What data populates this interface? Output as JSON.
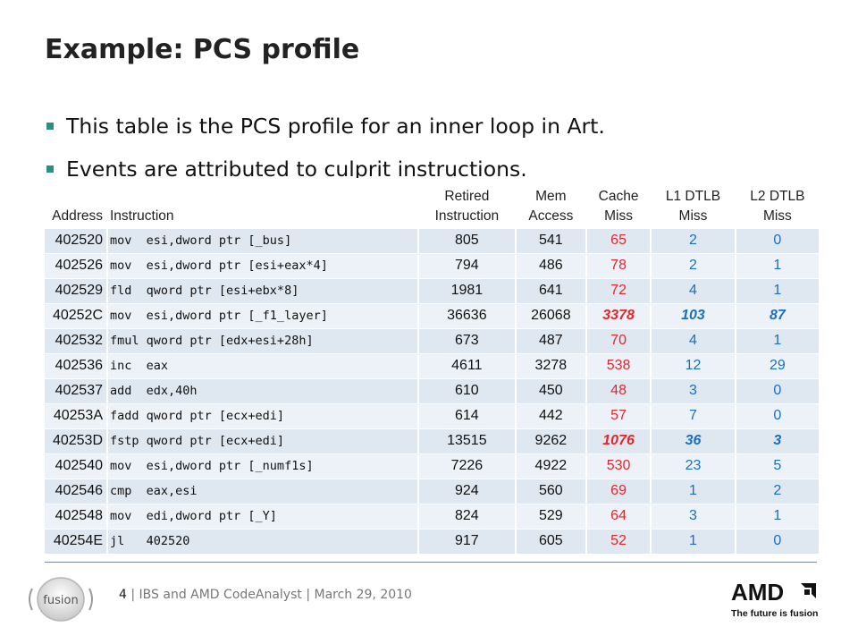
{
  "slide": {
    "title": "Example: PCS profile",
    "bullets": [
      "This table is the PCS profile for an inner loop in Art.",
      "Events are attributed to culprit instructions."
    ]
  },
  "table": {
    "headers": {
      "address": "Address",
      "instruction": "Instruction",
      "retired_l1": "Retired",
      "retired_l2": "Instruction",
      "mem_l1": "Mem",
      "mem_l2": "Access",
      "cache_l1": "Cache",
      "cache_l2": "Miss",
      "l1dtlb_l1": "L1 DTLB",
      "l1dtlb_l2": "Miss",
      "l2dtlb_l1": "L2 DTLB",
      "l2dtlb_l2": "Miss"
    },
    "rows": [
      {
        "address": "402520",
        "instruction": "mov  esi,dword ptr [_bus]",
        "retired": "805",
        "mem": "541",
        "cache": "65",
        "l1dtlb": "2",
        "l2dtlb": "0"
      },
      {
        "address": "402526",
        "instruction": "mov  esi,dword ptr [esi+eax*4]",
        "retired": "794",
        "mem": "486",
        "cache": "78",
        "l1dtlb": "2",
        "l2dtlb": "1"
      },
      {
        "address": "402529",
        "instruction": "fld  qword ptr [esi+ebx*8]",
        "retired": "1981",
        "mem": "641",
        "cache": "72",
        "l1dtlb": "4",
        "l2dtlb": "1"
      },
      {
        "address": "40252C",
        "instruction": "mov  esi,dword ptr [_f1_layer]",
        "retired": "36636",
        "mem": "26068",
        "cache": "3378",
        "l1dtlb": "103",
        "l2dtlb": "87"
      },
      {
        "address": "402532",
        "instruction": "fmul qword ptr [edx+esi+28h]",
        "retired": "673",
        "mem": "487",
        "cache": "70",
        "l1dtlb": "4",
        "l2dtlb": "1"
      },
      {
        "address": "402536",
        "instruction": "inc  eax",
        "retired": "4611",
        "mem": "3278",
        "cache": "538",
        "l1dtlb": "12",
        "l2dtlb": "29"
      },
      {
        "address": "402537",
        "instruction": "add  edx,40h",
        "retired": "610",
        "mem": "450",
        "cache": "48",
        "l1dtlb": "3",
        "l2dtlb": "0"
      },
      {
        "address": "40253A",
        "instruction": "fadd qword ptr [ecx+edi]",
        "retired": "614",
        "mem": "442",
        "cache": "57",
        "l1dtlb": "7",
        "l2dtlb": "0"
      },
      {
        "address": "40253D",
        "instruction": "fstp qword ptr [ecx+edi]",
        "retired": "13515",
        "mem": "9262",
        "cache": "1076",
        "l1dtlb": "36",
        "l2dtlb": "3"
      },
      {
        "address": "402540",
        "instruction": "mov  esi,dword ptr [_numf1s]",
        "retired": "7226",
        "mem": "4922",
        "cache": "530",
        "l1dtlb": "23",
        "l2dtlb": "5"
      },
      {
        "address": "402546",
        "instruction": "cmp  eax,esi",
        "retired": "924",
        "mem": "560",
        "cache": "69",
        "l1dtlb": "1",
        "l2dtlb": "2"
      },
      {
        "address": "402548",
        "instruction": "mov  edi,dword ptr [_Y]",
        "retired": "824",
        "mem": "529",
        "cache": "64",
        "l1dtlb": "3",
        "l2dtlb": "1"
      },
      {
        "address": "40254E",
        "instruction": "jl   402520",
        "retired": "917",
        "mem": "605",
        "cache": "52",
        "l1dtlb": "1",
        "l2dtlb": "0"
      }
    ]
  },
  "footer": {
    "page": "4",
    "text": " | IBS and AMD CodeAnalyst | March 29, 2010"
  },
  "logos": {
    "fusion_text": "fusion",
    "amd_text": "AMD",
    "amd_tagline": "The future is fusion"
  },
  "colors": {
    "accent_teal": "#2f8f7f",
    "cache_red": "#e5252a",
    "dtlb_blue": "#1a6fbf",
    "row_dark": "#dfe7f1",
    "row_light": "#edf2f8"
  }
}
